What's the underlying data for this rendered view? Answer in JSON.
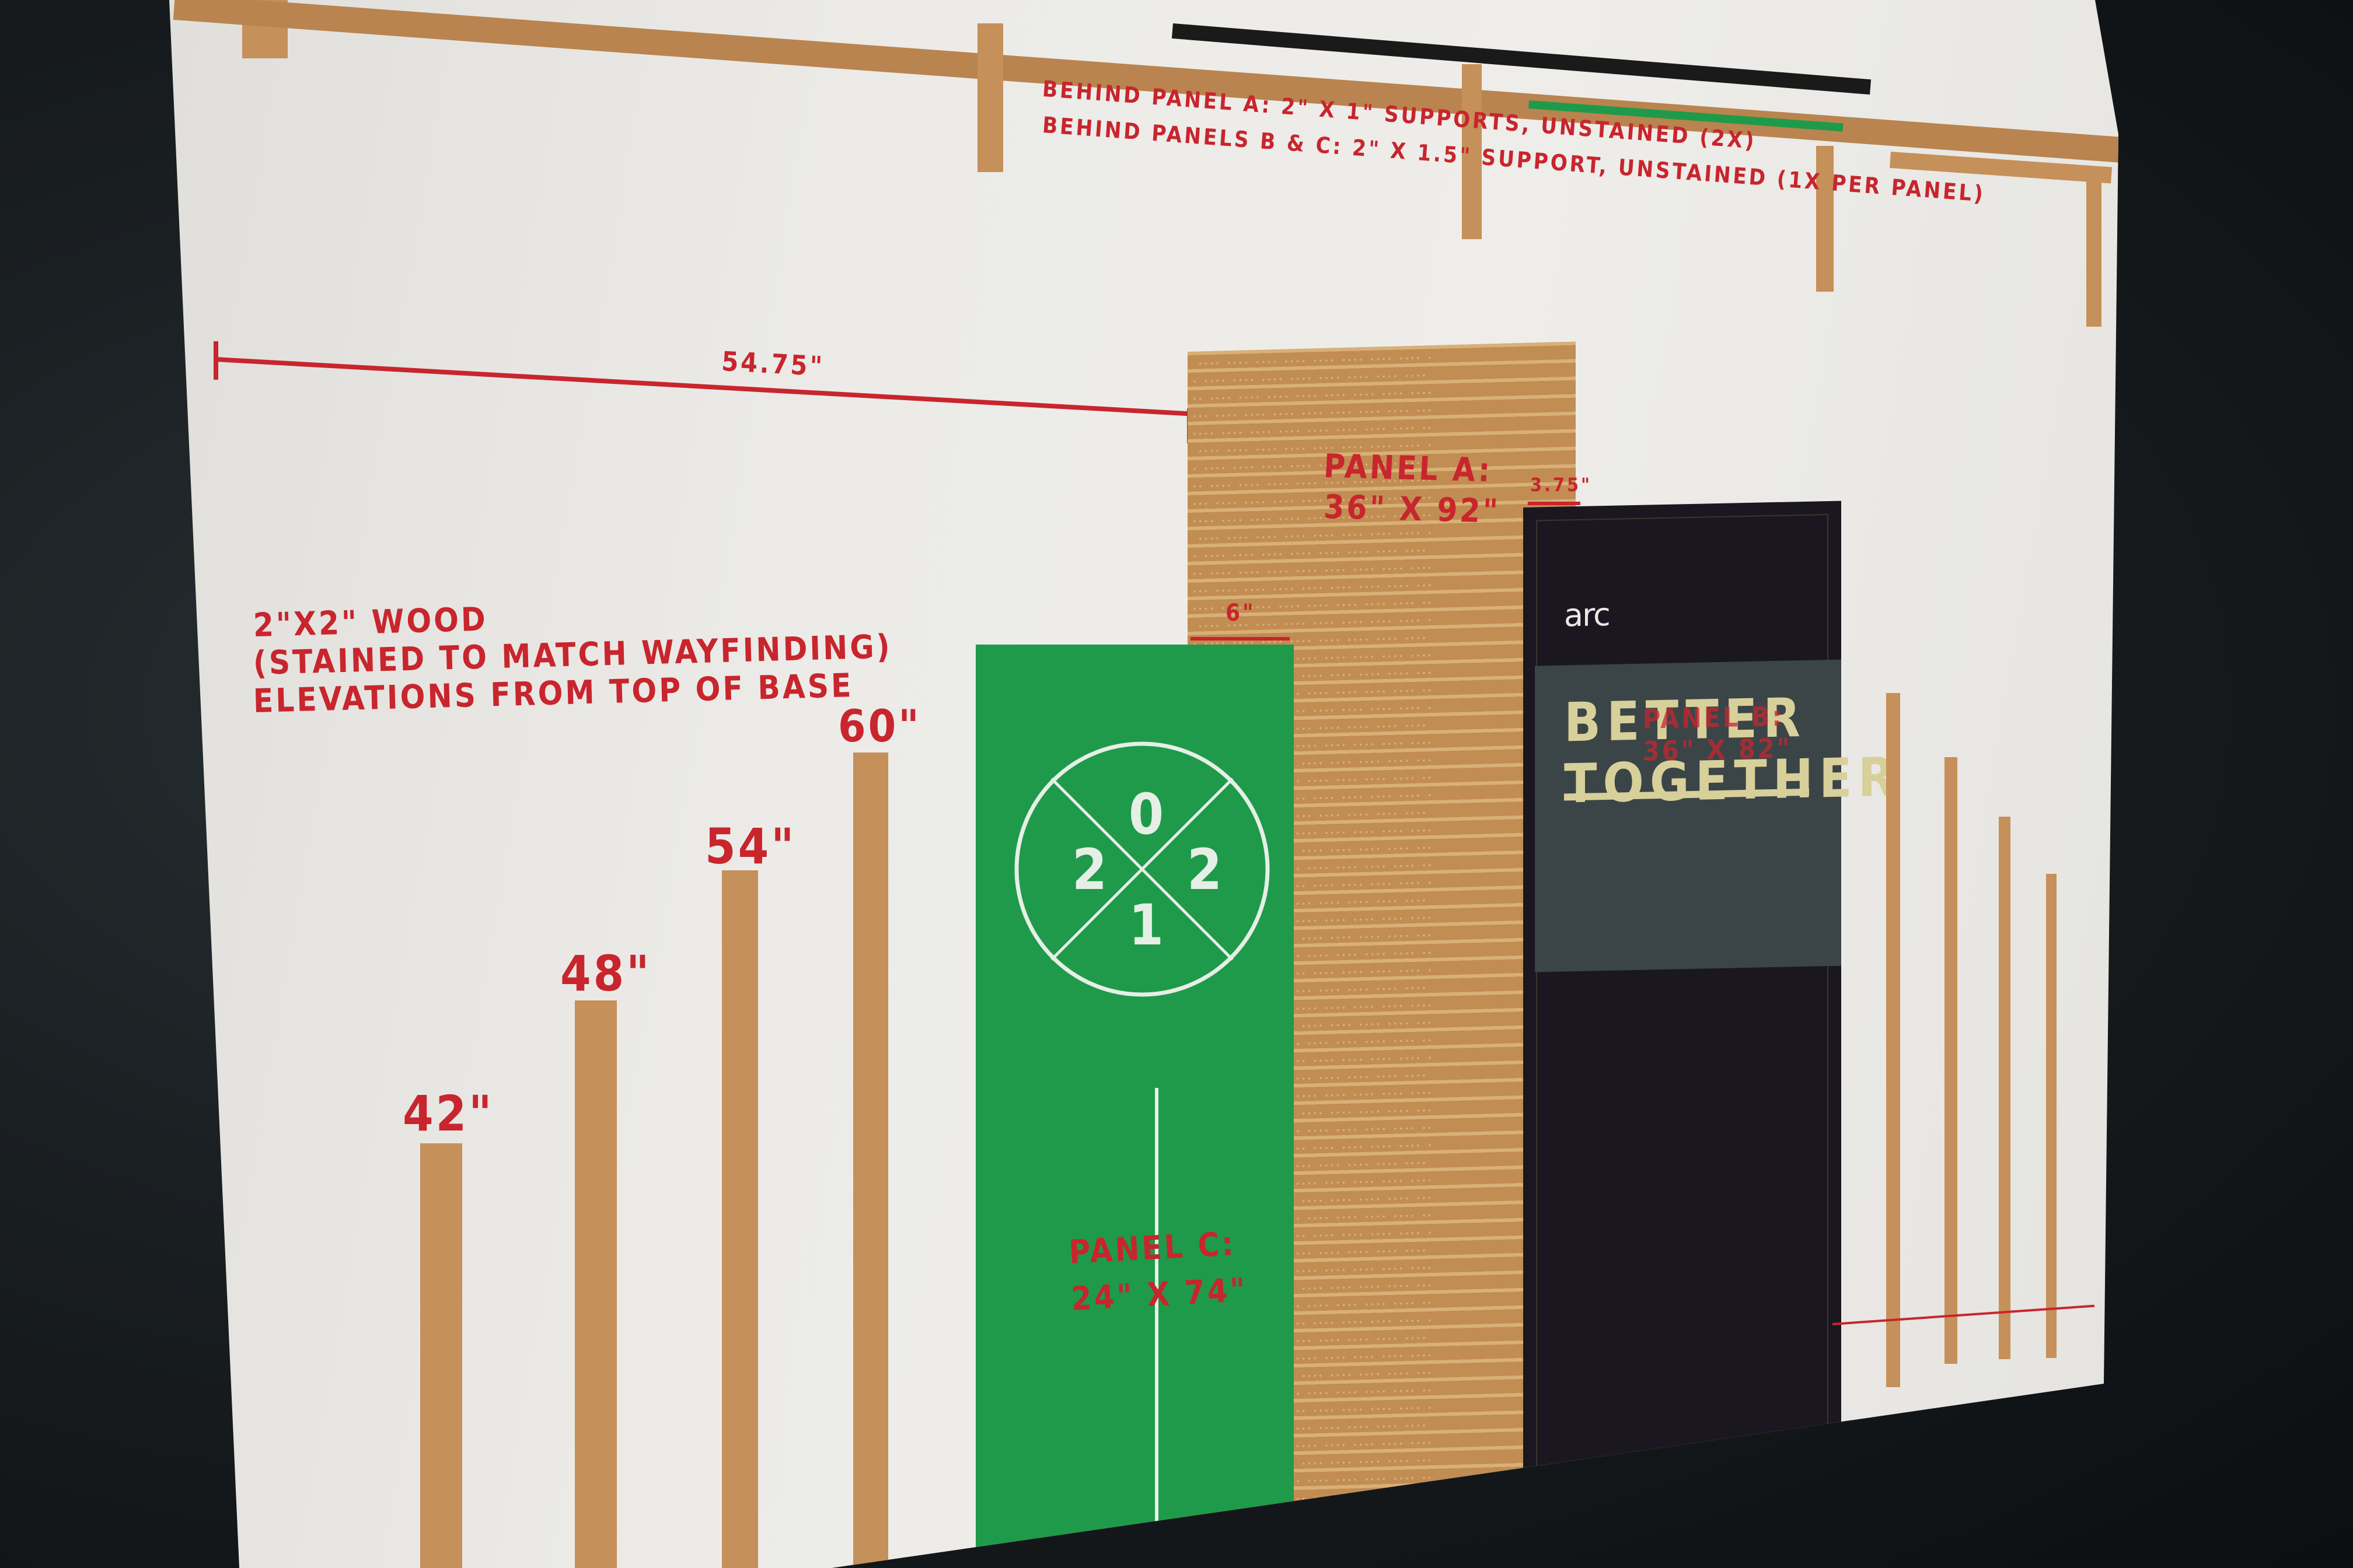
{
  "notes": {
    "supports_line1": "BEHIND PANEL A: 2\" X 1\" SUPPORTS, UNSTAINED (2X)",
    "supports_line2": "BEHIND PANELS B & C: 2\" X 1.5\" SUPPORT, UNSTAINED (1X PER PANEL)",
    "wood_line1": "2\"X2\" WOOD",
    "wood_line2": "(STAINED TO MATCH WAYFINDING)",
    "wood_line3": "ELEVATIONS FROM TOP OF BASE"
  },
  "dimensions": {
    "main_width": "54.75\"",
    "panel_a_gap": "3.75\"",
    "panel_c_offset": "6\""
  },
  "elevations": [
    {
      "label": "42\"",
      "value": 42
    },
    {
      "label": "48\"",
      "value": 48
    },
    {
      "label": "54\"",
      "value": 54
    },
    {
      "label": "60\"",
      "value": 60
    }
  ],
  "panels": {
    "a": {
      "title": "PANEL A:",
      "size": "36\" X 92\"",
      "color": "#c18d52"
    },
    "b": {
      "title": "PANEL B:",
      "size": "36\" X 82\"",
      "color": "#1a1720",
      "logo": "arc",
      "headline_line1": "BETTER",
      "headline_line2": "TOGETHER"
    },
    "c": {
      "title": "PANEL C:",
      "size": "24\" X 74\"",
      "color": "#1f9a4a",
      "badge_digits": [
        "0",
        "2",
        "2",
        "1"
      ]
    }
  },
  "colors": {
    "annotation_red": "#c8252d",
    "wood": "#c59059",
    "screen_bg": "#ecebe8"
  }
}
